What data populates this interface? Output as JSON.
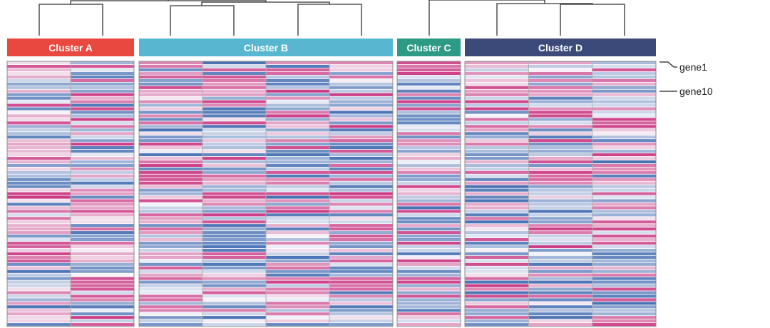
{
  "chart_data": {
    "type": "heatmap",
    "title": "",
    "legend": "none",
    "color_scale": {
      "low": "#4a73b5",
      "mid": "#f7f7fb",
      "high": "#cc3d86"
    },
    "clusters": [
      {
        "name": "Cluster A",
        "color": "#e8483e",
        "samples": 2
      },
      {
        "name": "Cluster B",
        "color": "#58b7d0",
        "samples": 4
      },
      {
        "name": "Cluster C",
        "color": "#2d9a86",
        "samples": 1
      },
      {
        "name": "Cluster D",
        "color": "#3c4a7a",
        "samples": 3
      }
    ],
    "n_rows": 75,
    "row_labels": [
      {
        "gene": "gene1",
        "row": 1
      },
      {
        "gene": "gene10",
        "row": 10
      }
    ],
    "dendrogram": {
      "left_group": [
        "Cluster A",
        "Cluster B"
      ],
      "right_group": [
        "Cluster C",
        "Cluster D"
      ]
    }
  }
}
